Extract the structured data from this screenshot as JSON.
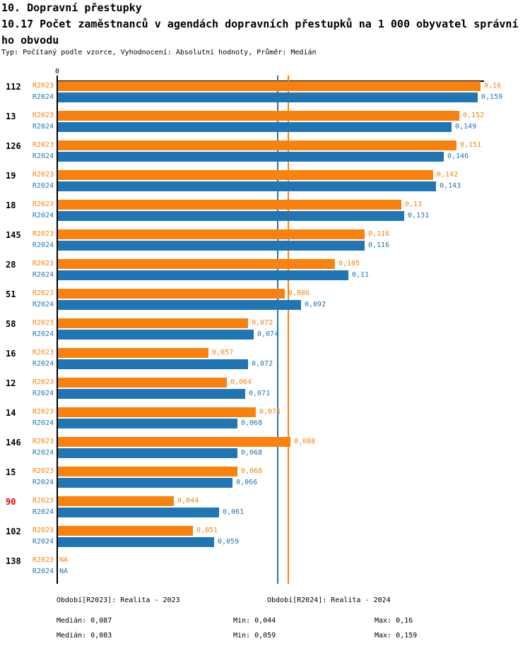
{
  "header": {
    "title": "10. Dopravní přestupky",
    "subtitle_line1": "10.17 Počet zaměstnanců v agendách dopravních přestupků na 1 000 obyvatel správní",
    "subtitle_line2": "ho obvodu",
    "meta_line": "Typ: Počítaný podle vzorce, Vyhodnocení: Absolutní hodnoty, Průměr: Medián"
  },
  "chart_data": {
    "type": "bar",
    "orientation": "horizontal",
    "xlim": [
      0,
      0.16
    ],
    "grid": false,
    "axis_tick_labels": [
      "0"
    ],
    "na_label": "NA",
    "categories": [
      "112",
      "13",
      "126",
      "19",
      "18",
      "145",
      "28",
      "51",
      "58",
      "16",
      "12",
      "14",
      "146",
      "15",
      "90",
      "102",
      "138"
    ],
    "highlighted_categories": [
      "90"
    ],
    "series": [
      {
        "name": "R2023",
        "color": "#f8820d",
        "values": [
          0.16,
          0.152,
          0.151,
          0.142,
          0.13,
          0.116,
          0.105,
          0.086,
          0.072,
          0.057,
          0.064,
          0.075,
          0.088,
          0.068,
          0.044,
          0.051,
          null
        ],
        "value_labels": [
          "0,16",
          "0,152",
          "0,151",
          "0,142",
          "0,13",
          "0,116",
          "0,105",
          "0,086",
          "0,072",
          "0,057",
          "0,064",
          "0,075",
          "0,088",
          "0,068",
          "0,044",
          "0,051",
          "NA"
        ],
        "median": 0.087,
        "period_label": "Období[R2023]: Realita - 2023",
        "stats": {
          "median_label": "Medián: 0,087",
          "min_label": "Min: 0,044",
          "max_label": "Max: 0,16"
        }
      },
      {
        "name": "R2024",
        "color": "#2076b4",
        "values": [
          0.159,
          0.149,
          0.146,
          0.143,
          0.131,
          0.116,
          0.11,
          0.092,
          0.074,
          0.072,
          0.071,
          0.068,
          0.068,
          0.066,
          0.061,
          0.059,
          null
        ],
        "value_labels": [
          "0,159",
          "0,149",
          "0,146",
          "0,143",
          "0,131",
          "0,116",
          "0,11",
          "0,092",
          "0,074",
          "0,072",
          "0,071",
          "0,068",
          "0,068",
          "0,066",
          "0,061",
          "0,059",
          "NA"
        ],
        "median": 0.083,
        "period_label": "Období[R2024]: Realita - 2024",
        "stats": {
          "median_label": "Medián: 0,083",
          "min_label": "Min: 0,059",
          "max_label": "Max: 0,159"
        }
      }
    ]
  },
  "colors": {
    "highlight": "#e60000",
    "axis": "#000000",
    "background": "#ffffff",
    "r2023_orange": "#f8820d",
    "r2024_blue": "#2076b4"
  }
}
